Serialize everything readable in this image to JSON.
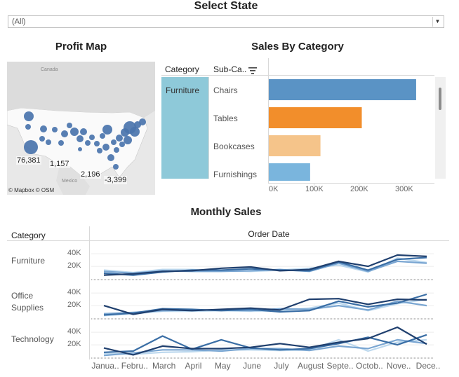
{
  "filter": {
    "title": "Select State",
    "value": "(All)"
  },
  "profit_map": {
    "title": "Profit Map",
    "country_labels": [
      "Canada",
      "Mexico"
    ],
    "value_labels": [
      "76,381",
      "1,157",
      "2,196",
      "-3,399"
    ],
    "attribution": "© Mapbox © OSM"
  },
  "sales_by_category": {
    "title": "Sales By Category",
    "col_category": "Category",
    "col_subcategory": "Sub-Ca..",
    "category": "Furniture",
    "x_ticks": [
      "0K",
      "100K",
      "200K",
      "300K"
    ],
    "colors": [
      "#5a93c5",
      "#f28e2b",
      "#f5c48a",
      "#7ab5dd"
    ],
    "chart_data": {
      "type": "bar",
      "categories": [
        "Chairs",
        "Tables",
        "Bookcases",
        "Furnishings"
      ],
      "values": [
        328000,
        207000,
        115000,
        92000
      ],
      "xlim": [
        0,
        350000
      ]
    }
  },
  "monthly_sales": {
    "title": "Monthly Sales",
    "col_category": "Category",
    "col_date": "Order Date",
    "y_ticks": [
      "40K",
      "20K"
    ],
    "rows": [
      {
        "label_lines": [
          "Furniture"
        ]
      },
      {
        "label_lines": [
          "Office",
          "Supplies"
        ]
      },
      {
        "label_lines": [
          "Technology"
        ]
      }
    ],
    "series_colors": [
      "#1f3f6e",
      "#3a6ea5",
      "#7aa6d2",
      "#bcd8ee"
    ],
    "chart_data": {
      "type": "line",
      "x": [
        "Janua..",
        "Febru..",
        "March",
        "April",
        "May",
        "June",
        "July",
        "August",
        "Septe..",
        "Octob..",
        "Nove..",
        "Dece.."
      ],
      "ylim": [
        0,
        48000
      ],
      "panels": [
        {
          "category": "Furniture",
          "series": [
            {
              "values": [
                6000,
                8000,
                12000,
                13000,
                17000,
                19000,
                13000,
                15000,
                28000,
                20000,
                38000,
                36000
              ]
            },
            {
              "values": [
                9000,
                6000,
                11000,
                14000,
                14000,
                16000,
                14000,
                13000,
                27000,
                14000,
                31000,
                34000
              ]
            },
            {
              "values": [
                12000,
                9000,
                13000,
                12000,
                12000,
                13000,
                15000,
                12000,
                25000,
                12000,
                28000,
                25000
              ]
            },
            {
              "values": [
                14000,
                10000,
                15000,
                15000,
                13000,
                12000,
                14000,
                17000,
                22000,
                11000,
                33000,
                26000
              ]
            }
          ]
        },
        {
          "category": "Office Supplies",
          "series": [
            {
              "values": [
                20000,
                6000,
                14000,
                12000,
                14000,
                16000,
                13000,
                30000,
                31000,
                22000,
                30000,
                29000
              ]
            },
            {
              "values": [
                5000,
                8000,
                15000,
                14000,
                12000,
                14000,
                10000,
                12000,
                27000,
                18000,
                24000,
                38000
              ]
            },
            {
              "values": [
                7000,
                9000,
                12000,
                13000,
                13000,
                12000,
                15000,
                14000,
                20000,
                13000,
                27000,
                20000
              ]
            },
            {
              "values": [
                4000,
                7000,
                11000,
                11000,
                12000,
                11000,
                12000,
                16000,
                24000,
                12000,
                23000,
                30000
              ]
            }
          ]
        },
        {
          "category": "Technology",
          "series": [
            {
              "values": [
                15000,
                4000,
                18000,
                14000,
                14000,
                16000,
                22000,
                16000,
                24000,
                30000,
                48000,
                21000
              ]
            },
            {
              "values": [
                8000,
                10000,
                34000,
                13000,
                28000,
                15000,
                12000,
                14000,
                22000,
                32000,
                20000,
                36000
              ]
            },
            {
              "values": [
                3000,
                7000,
                12000,
                12000,
                10000,
                14000,
                14000,
                11000,
                18000,
                14000,
                28000,
                22000
              ]
            },
            {
              "values": [
                6000,
                5000,
                8000,
                9000,
                12000,
                12000,
                11000,
                12000,
                28000,
                10000,
                24000,
                28000
              ]
            }
          ]
        }
      ]
    }
  }
}
